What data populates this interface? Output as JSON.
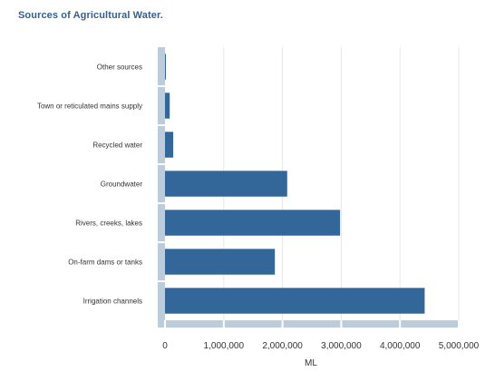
{
  "chart_data": {
    "type": "bar",
    "orientation": "horizontal",
    "title": "Sources of Agricultural Water.",
    "xlabel": "ML",
    "ylabel": "",
    "categories": [
      "Other sources",
      "Town or reticulated mains supply",
      "Recycled water",
      "Groundwater",
      "Rivers, creeks, lakes",
      "On-farm dams or tanks",
      "Irrigation channels"
    ],
    "values": [
      15000,
      80000,
      140000,
      2080000,
      2980000,
      1870000,
      4420000
    ],
    "xlim": [
      0,
      5000000
    ],
    "xticks": [
      0,
      1000000,
      2000000,
      3000000,
      4000000,
      5000000
    ],
    "xtick_labels": [
      "0",
      "1,000,000",
      "2,000,000",
      "3,000,000",
      "4,000,000",
      "5,000,000"
    ],
    "grid": true,
    "legend": "none",
    "bar_color": "#336699",
    "axis_color": "#bdccdb"
  }
}
